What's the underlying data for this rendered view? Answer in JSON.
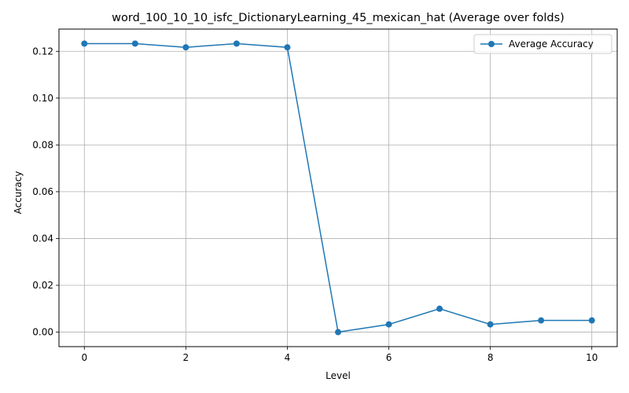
{
  "chart_data": {
    "type": "line",
    "title": "word_100_10_10_isfc_DictionaryLearning_45_mexican_hat (Average over folds)",
    "xlabel": "Level",
    "ylabel": "Accuracy",
    "xlim": [
      -0.5,
      10.5
    ],
    "ylim": [
      -0.0062,
      0.1295
    ],
    "xticks": [
      0,
      2,
      4,
      6,
      8,
      10
    ],
    "xtick_labels": [
      "0",
      "2",
      "4",
      "6",
      "8",
      "10"
    ],
    "yticks": [
      0.0,
      0.02,
      0.04,
      0.06,
      0.08,
      0.1,
      0.12
    ],
    "ytick_labels": [
      "0.00",
      "0.02",
      "0.04",
      "0.06",
      "0.08",
      "0.10",
      "0.12"
    ],
    "grid": true,
    "legend_position": "top-right",
    "series": [
      {
        "name": "Average Accuracy",
        "color": "#1f77b4",
        "marker": "circle",
        "x": [
          0,
          1,
          2,
          3,
          4,
          5,
          6,
          7,
          8,
          9,
          10
        ],
        "y": [
          0.1233,
          0.1233,
          0.1217,
          0.1233,
          0.1217,
          0.0,
          0.0033,
          0.01,
          0.0033,
          0.005,
          0.005
        ]
      }
    ]
  }
}
